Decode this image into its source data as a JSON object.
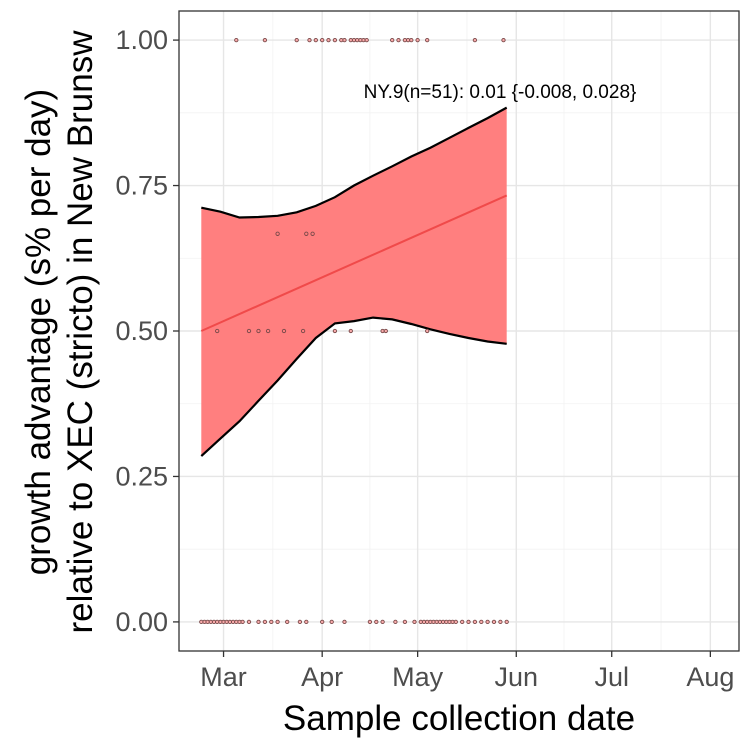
{
  "chart_data": {
    "type": "scatter",
    "title": "",
    "xlabel": "Sample collection date",
    "ylabel_lines": [
      "growth advantage (s% per day)",
      "relative to XEC (stricto) in New Brunsw"
    ],
    "x_ticks": [
      {
        "date": "2025-03-01",
        "label": "Mar"
      },
      {
        "date": "2025-04-01",
        "label": "Apr"
      },
      {
        "date": "2025-05-01",
        "label": "May"
      },
      {
        "date": "2025-06-01",
        "label": "Jun"
      },
      {
        "date": "2025-07-01",
        "label": "Jul"
      },
      {
        "date": "2025-08-01",
        "label": "Aug"
      }
    ],
    "xlim": [
      "2025-02-15",
      "2025-08-10"
    ],
    "ylim": [
      -0.05,
      1.05
    ],
    "y_ticks": [
      {
        "value": 0.0,
        "label": "0.00"
      },
      {
        "value": 0.25,
        "label": "0.25"
      },
      {
        "value": 0.5,
        "label": "0.50"
      },
      {
        "value": 0.75,
        "label": "0.75"
      },
      {
        "value": 1.0,
        "label": "1.00"
      }
    ],
    "grid": true,
    "annotation": "NY.9(n=51): 0.01 {-0.008, 0.028}",
    "colors": {
      "band_fill": "#ff7f7f",
      "band_outline": "#000000",
      "fit_line": "#f04a4a",
      "points": "#7a4a4a"
    },
    "fit": {
      "x": [
        "2025-02-22",
        "2025-05-29"
      ],
      "y": [
        0.5,
        0.733
      ]
    },
    "band": {
      "x": [
        "2025-02-22",
        "2025-02-28",
        "2025-03-06",
        "2025-03-12",
        "2025-03-18",
        "2025-03-24",
        "2025-03-30",
        "2025-04-05",
        "2025-04-11",
        "2025-04-17",
        "2025-04-23",
        "2025-04-29",
        "2025-05-05",
        "2025-05-11",
        "2025-05-17",
        "2025-05-23",
        "2025-05-29"
      ],
      "lower": [
        0.285,
        0.315,
        0.345,
        0.38,
        0.415,
        0.452,
        0.488,
        0.513,
        0.517,
        0.523,
        0.52,
        0.512,
        0.503,
        0.495,
        0.488,
        0.482,
        0.478
      ],
      "upper": [
        0.712,
        0.705,
        0.695,
        0.696,
        0.698,
        0.704,
        0.715,
        0.73,
        0.75,
        0.767,
        0.783,
        0.8,
        0.815,
        0.832,
        0.849,
        0.866,
        0.884
      ]
    },
    "points": {
      "x": [
        "2025-02-22",
        "2025-02-23",
        "2025-02-24",
        "2025-02-25",
        "2025-02-26",
        "2025-02-27",
        "2025-02-28",
        "2025-03-01",
        "2025-03-02",
        "2025-03-03",
        "2025-03-04",
        "2025-03-05",
        "2025-03-06",
        "2025-03-07",
        "2025-03-09",
        "2025-03-12",
        "2025-03-14",
        "2025-03-16",
        "2025-03-18",
        "2025-03-21",
        "2025-03-25",
        "2025-03-27",
        "2025-04-01",
        "2025-04-04",
        "2025-04-08",
        "2025-04-16",
        "2025-04-18",
        "2025-04-20",
        "2025-04-24",
        "2025-04-27",
        "2025-04-30",
        "2025-05-02",
        "2025-05-03",
        "2025-05-04",
        "2025-05-05",
        "2025-05-06",
        "2025-05-07",
        "2025-05-08",
        "2025-05-09",
        "2025-05-10",
        "2025-05-11",
        "2025-05-12",
        "2025-05-13",
        "2025-05-15",
        "2025-05-17",
        "2025-05-19",
        "2025-05-21",
        "2025-05-23",
        "2025-05-25",
        "2025-05-27",
        "2025-05-29",
        "2025-02-27",
        "2025-03-09",
        "2025-03-12",
        "2025-03-15",
        "2025-03-20",
        "2025-03-26",
        "2025-04-05",
        "2025-04-10",
        "2025-04-20",
        "2025-04-21",
        "2025-05-04",
        "2025-03-18",
        "2025-03-27",
        "2025-03-29",
        "2025-03-05",
        "2025-03-14",
        "2025-03-24",
        "2025-03-28",
        "2025-03-30",
        "2025-04-01",
        "2025-04-03",
        "2025-04-05",
        "2025-04-07",
        "2025-04-08",
        "2025-04-10",
        "2025-04-11",
        "2025-04-12",
        "2025-04-13",
        "2025-04-14",
        "2025-04-15",
        "2025-04-23",
        "2025-04-25",
        "2025-04-27",
        "2025-04-28",
        "2025-04-29",
        "2025-05-01",
        "2025-05-04",
        "2025-05-19",
        "2025-05-28"
      ],
      "y": [
        0,
        0,
        0,
        0,
        0,
        0,
        0,
        0,
        0,
        0,
        0,
        0,
        0,
        0,
        0,
        0,
        0,
        0,
        0,
        0,
        0,
        0,
        0,
        0,
        0,
        0,
        0,
        0,
        0,
        0,
        0,
        0,
        0,
        0,
        0,
        0,
        0,
        0,
        0,
        0,
        0,
        0,
        0,
        0,
        0,
        0,
        0,
        0,
        0,
        0,
        0,
        0.5,
        0.5,
        0.5,
        0.5,
        0.5,
        0.5,
        0.5,
        0.5,
        0.5,
        0.5,
        0.5,
        0.667,
        0.667,
        0.667,
        1,
        1,
        1,
        1,
        1,
        1,
        1,
        1,
        1,
        1,
        1,
        1,
        1,
        1,
        1,
        1,
        1,
        1,
        1,
        1,
        1,
        1,
        1,
        1,
        1
      ]
    }
  }
}
